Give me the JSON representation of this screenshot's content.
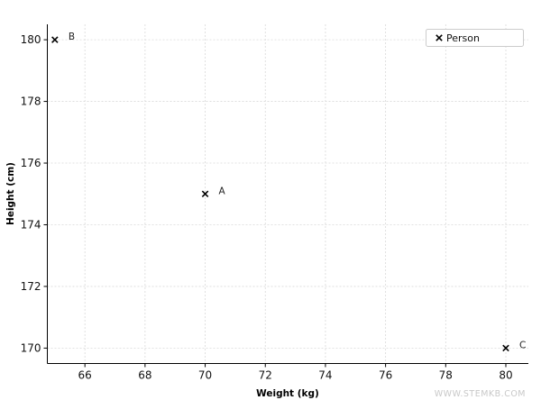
{
  "chart_data": {
    "type": "scatter",
    "xlabel": "Weight (kg)",
    "ylabel": "Height (cm)",
    "xlim": [
      64.75,
      80.75
    ],
    "ylim": [
      169.5,
      180.5
    ],
    "xticks": [
      "66",
      "68",
      "70",
      "72",
      "74",
      "76",
      "78",
      "80"
    ],
    "yticks": [
      "170",
      "172",
      "174",
      "176",
      "178",
      "180"
    ],
    "grid": true,
    "legend_position": "top-right",
    "series": [
      {
        "name": "Person",
        "marker": "x",
        "color": "#000000",
        "points": [
          {
            "label": "A",
            "x": 70,
            "y": 175
          },
          {
            "label": "B",
            "x": 65,
            "y": 180
          },
          {
            "label": "C",
            "x": 80,
            "y": 170
          }
        ]
      }
    ]
  },
  "watermark": "WWW.STEMKB.COM"
}
